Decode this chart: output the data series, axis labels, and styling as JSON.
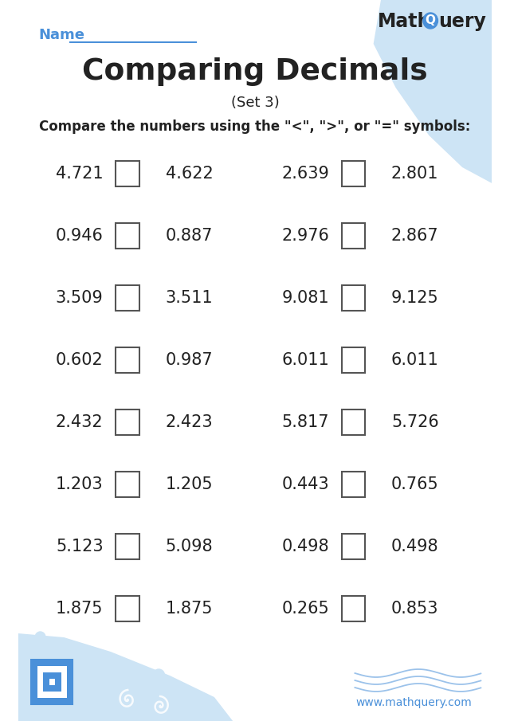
{
  "title": "Comparing Decimals",
  "subtitle": "(Set 3)",
  "instruction": "Compare the numbers using the \"<\", \">\", or \"=\" symbols:",
  "name_label": "Name",
  "website": "www.mathquery.com",
  "bg_color": "#ffffff",
  "blue_color": "#4a90d9",
  "light_blue_blob": "#cde4f5",
  "text_color": "#222222",
  "bl_circles": [
    [
      30,
      800,
      7
    ],
    [
      190,
      848,
      8
    ]
  ],
  "tr_circles": [
    [
      582,
      85,
      12
    ],
    [
      612,
      145,
      8
    ],
    [
      598,
      185,
      5
    ]
  ],
  "pairs_left": [
    [
      "4.721",
      "4.622"
    ],
    [
      "0.946",
      "0.887"
    ],
    [
      "3.509",
      "3.511"
    ],
    [
      "0.602",
      "0.987"
    ],
    [
      "2.432",
      "2.423"
    ],
    [
      "1.203",
      "1.205"
    ],
    [
      "5.123",
      "5.098"
    ],
    [
      "1.875",
      "1.875"
    ]
  ],
  "pairs_right": [
    [
      "2.639",
      "2.801"
    ],
    [
      "2.976",
      "2.867"
    ],
    [
      "9.081",
      "9.125"
    ],
    [
      "6.011",
      "6.011"
    ],
    [
      "5.817",
      "5.726"
    ],
    [
      "0.443",
      "0.765"
    ],
    [
      "0.498",
      "0.498"
    ],
    [
      "0.265",
      "0.853"
    ]
  ]
}
